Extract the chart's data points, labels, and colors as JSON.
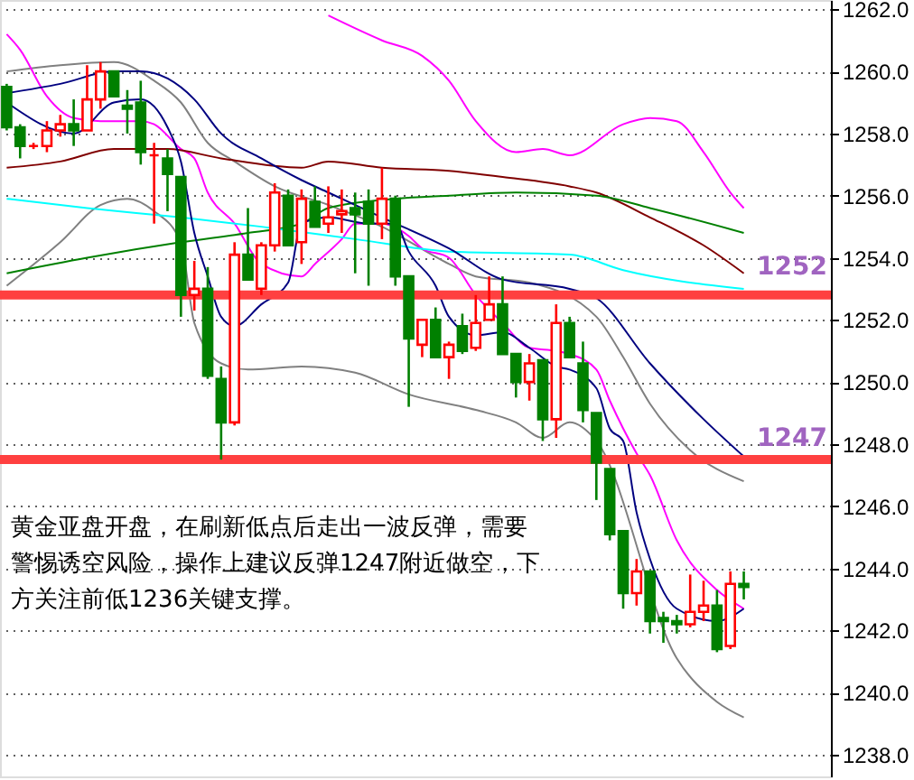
{
  "chart_data": {
    "type": "candlestick",
    "categories": [
      null,
      null,
      null,
      null,
      null,
      null,
      null,
      null,
      null,
      null,
      null,
      null,
      null,
      null,
      null,
      null,
      null,
      null,
      null,
      null,
      null,
      null,
      null,
      null,
      null,
      null,
      null,
      null,
      null,
      null,
      null,
      null,
      null,
      null,
      null,
      null,
      null,
      null,
      null,
      null,
      null,
      null,
      null,
      null,
      null,
      null,
      null,
      null,
      null,
      null,
      null,
      null,
      null,
      null,
      null,
      null,
      null,
      null,
      null,
      null,
      null,
      null
    ],
    "ohlc": [
      [
        1259.5,
        1259.6,
        1258.1,
        1258.2
      ],
      [
        1258.2,
        1258.3,
        1257.2,
        1257.6
      ],
      [
        1257.6,
        1257.7,
        1257.5,
        1257.6
      ],
      [
        1257.6,
        1258.4,
        1257.4,
        1258.1
      ],
      [
        1258.1,
        1258.6,
        1257.9,
        1258.3
      ],
      [
        1258.3,
        1259.1,
        1257.6,
        1258.1
      ],
      [
        1258.1,
        1260.2,
        1258.1,
        1259.1
      ],
      [
        1259.1,
        1260.3,
        1258.8,
        1260.0
      ],
      [
        1260.0,
        1260.0,
        1259.2,
        1259.2
      ],
      [
        1258.9,
        1259.4,
        1258.0,
        1258.8
      ],
      [
        1259.0,
        1259.7,
        1257.0,
        1257.4
      ],
      [
        1257.3,
        1257.7,
        1255.1,
        1257.3
      ],
      [
        1257.2,
        1257.5,
        1255.5,
        1256.7
      ],
      [
        1256.6,
        1256.6,
        1252.1,
        1252.8
      ],
      [
        1252.8,
        1253.9,
        1252.3,
        1253.0
      ],
      [
        1253.0,
        1253.7,
        1250.1,
        1250.2
      ],
      [
        1250.1,
        1250.5,
        1247.5,
        1248.7
      ],
      [
        1248.7,
        1254.5,
        1248.6,
        1254.1
      ],
      [
        1254.1,
        1255.6,
        1253.3,
        1253.3
      ],
      [
        1253.0,
        1254.5,
        1252.8,
        1254.4
      ],
      [
        1254.4,
        1256.4,
        1254.2,
        1256.1
      ],
      [
        1256.0,
        1256.2,
        1254.4,
        1254.4
      ],
      [
        1254.5,
        1256.2,
        1253.8,
        1255.9
      ],
      [
        1255.8,
        1256.3,
        1255.0,
        1255.0
      ],
      [
        1255.1,
        1256.3,
        1254.8,
        1255.3
      ],
      [
        1255.4,
        1256.2,
        1254.8,
        1255.5
      ],
      [
        1255.6,
        1256.1,
        1253.5,
        1255.4
      ],
      [
        1255.8,
        1256.2,
        1253.1,
        1255.1
      ],
      [
        1255.1,
        1256.9,
        1254.6,
        1255.9
      ],
      [
        1255.9,
        1256.0,
        1253.1,
        1253.4
      ],
      [
        1253.4,
        1253.4,
        1249.2,
        1251.4
      ],
      [
        1251.2,
        1252.0,
        1250.8,
        1252.0
      ],
      [
        1252.0,
        1252.4,
        1250.8,
        1250.8
      ],
      [
        1250.8,
        1251.3,
        1250.1,
        1251.2
      ],
      [
        1251.8,
        1252.2,
        1250.9,
        1251.0
      ],
      [
        1251.1,
        1252.8,
        1251.0,
        1251.9
      ],
      [
        1252.0,
        1253.4,
        1252.0,
        1252.5
      ],
      [
        1252.5,
        1253.4,
        1250.9,
        1250.9
      ],
      [
        1250.9,
        1250.9,
        1249.5,
        1250.0
      ],
      [
        1250.0,
        1250.9,
        1249.4,
        1250.6
      ],
      [
        1250.7,
        1250.7,
        1248.1,
        1248.8
      ],
      [
        1248.8,
        1252.5,
        1248.2,
        1251.9
      ],
      [
        1251.9,
        1252.1,
        1250.8,
        1250.8
      ],
      [
        1250.6,
        1251.3,
        1248.7,
        1249.1
      ],
      [
        1249.0,
        1249.0,
        1246.2,
        1247.4
      ],
      [
        1247.2,
        1247.2,
        1244.9,
        1245.1
      ],
      [
        1245.2,
        1245.2,
        1242.7,
        1243.2
      ],
      [
        1243.2,
        1244.3,
        1242.8,
        1243.9
      ],
      [
        1243.9,
        1243.9,
        1241.9,
        1242.3
      ],
      [
        1242.4,
        1242.6,
        1241.6,
        1242.3
      ],
      [
        1242.3,
        1242.5,
        1241.9,
        1242.2
      ],
      [
        1242.2,
        1243.8,
        1242.1,
        1242.6
      ],
      [
        1242.6,
        1243.6,
        1242.3,
        1242.8
      ],
      [
        1242.8,
        1243.3,
        1241.3,
        1241.4
      ],
      [
        1241.5,
        1243.9,
        1241.4,
        1243.5
      ],
      [
        1243.5,
        1243.9,
        1243.0,
        1243.4
      ],
      null,
      null,
      null,
      null,
      null,
      null
    ],
    "series": [
      {
        "type": "line",
        "color": "#808080",
        "values": [
          1260.0,
          null,
          null,
          null,
          1260.2,
          null,
          null,
          null,
          1260.3,
          null,
          null,
          1259.7,
          null,
          1259.0,
          null,
          1257.7,
          null,
          1257.1,
          null,
          null,
          1256.3,
          null,
          null,
          null,
          1255.7,
          null,
          null,
          null,
          1255.0,
          null,
          null,
          null,
          null,
          1253.8,
          null,
          1253.4,
          null,
          null,
          null,
          1253.2,
          null,
          null,
          null,
          null,
          1252.1,
          null,
          1250.8,
          null,
          1249.3,
          null,
          null,
          1247.8,
          null,
          null,
          null,
          1246.8,
          null,
          null,
          null,
          null,
          null,
          null
        ]
      },
      {
        "type": "line",
        "color": "#808080",
        "values": [
          1253.1,
          null,
          null,
          null,
          1254.5,
          null,
          null,
          1255.7,
          null,
          1255.9,
          null,
          1255.5,
          null,
          1254.5,
          1251.9,
          null,
          1250.6,
          null,
          1250.4,
          null,
          null,
          null,
          1250.5,
          null,
          null,
          null,
          1250.3,
          null,
          null,
          null,
          1249.6,
          null,
          null,
          null,
          null,
          1249.1,
          null,
          null,
          1248.7,
          null,
          1248.2,
          null,
          1248.7,
          null,
          1248.1,
          null,
          null,
          null,
          null,
          null,
          1241.1,
          null,
          null,
          1239.7,
          null,
          1239.2,
          null,
          null,
          null,
          null,
          null,
          null
        ]
      },
      {
        "type": "line",
        "color": "#ff00ff",
        "values": [
          1261.2,
          1260.7,
          null,
          1259.2,
          null,
          1258.5,
          null,
          1258.4,
          null,
          null,
          1258.4,
          1258.3,
          null,
          1257.5,
          1257.2,
          1256.1,
          null,
          1255.1,
          null,
          1253.8,
          null,
          null,
          1253.4,
          1253.8,
          null,
          1254.6,
          1255.1,
          null,
          1255.1,
          null,
          1254.7,
          1254.3,
          null,
          1254.0,
          null,
          1252.8,
          null,
          1251.9,
          null,
          1251.1,
          null,
          1251.0,
          1250.9,
          null,
          1250.4,
          1249.4,
          null,
          1247.7,
          1247.0,
          null,
          1244.9,
          null,
          null,
          1243.3,
          null,
          1242.7,
          null,
          null,
          null,
          null,
          null,
          null
        ]
      },
      {
        "type": "line",
        "color": "#ff00ff",
        "values": [
          null,
          null,
          null,
          null,
          null,
          null,
          null,
          null,
          null,
          null,
          null,
          null,
          null,
          null,
          null,
          null,
          null,
          null,
          null,
          null,
          null,
          null,
          null,
          null,
          1261.8,
          null,
          null,
          null,
          1261.0,
          null,
          null,
          1260.5,
          null,
          1259.7,
          null,
          1258.4,
          null,
          null,
          1257.4,
          null,
          1257.5,
          null,
          1257.3,
          null,
          null,
          null,
          1258.3,
          null,
          1258.5,
          null,
          1258.4,
          null,
          1257.4,
          null,
          1256.1,
          1255.6,
          null,
          null,
          null,
          null,
          null,
          null
        ]
      },
      {
        "type": "line",
        "color": "#800000",
        "values": [
          1256.9,
          null,
          null,
          null,
          1257.1,
          null,
          null,
          null,
          1257.5,
          null,
          null,
          null,
          1257.5,
          null,
          null,
          null,
          1257.2,
          null,
          null,
          null,
          null,
          null,
          1256.9,
          null,
          1257.1,
          null,
          null,
          null,
          1256.9,
          null,
          null,
          null,
          null,
          1256.8,
          null,
          null,
          null,
          1256.6,
          null,
          null,
          null,
          null,
          1256.3,
          null,
          1256.1,
          null,
          null,
          null,
          1255.3,
          null,
          null,
          null,
          1254.4,
          null,
          null,
          1253.5,
          null,
          null,
          null,
          null,
          null,
          null
        ]
      },
      {
        "type": "line",
        "color": "#008000",
        "values": [
          1253.5,
          null,
          null,
          null,
          null,
          null,
          1254.0,
          null,
          null,
          null,
          null,
          null,
          null,
          1254.5,
          null,
          null,
          null,
          null,
          1254.8,
          null,
          null,
          null,
          1255.1,
          null,
          1255.6,
          null,
          null,
          null,
          null,
          1255.9,
          null,
          null,
          null,
          1256.0,
          null,
          null,
          null,
          null,
          1256.1,
          null,
          null,
          null,
          null,
          null,
          1256.0,
          null,
          null,
          null,
          1255.6,
          null,
          null,
          null,
          null,
          null,
          null,
          1254.8,
          null,
          null,
          null,
          null,
          null,
          null
        ]
      },
      {
        "type": "line",
        "color": "#00ffff",
        "values": [
          1255.9,
          null,
          null,
          null,
          null,
          null,
          1255.6,
          null,
          null,
          null,
          null,
          null,
          null,
          1255.3,
          null,
          null,
          null,
          null,
          null,
          1255.0,
          null,
          null,
          null,
          null,
          null,
          null,
          1254.6,
          null,
          null,
          null,
          null,
          null,
          null,
          1254.2,
          null,
          null,
          null,
          null,
          null,
          null,
          null,
          null,
          1254.1,
          null,
          null,
          null,
          1253.6,
          null,
          null,
          null,
          null,
          null,
          null,
          null,
          null,
          1253.0,
          null,
          null,
          null,
          null,
          null,
          null
        ]
      },
      {
        "type": "line",
        "color": "#000080",
        "values": [
          1259.3,
          null,
          null,
          null,
          1259.6,
          null,
          null,
          null,
          1260.0,
          null,
          1260.0,
          null,
          null,
          null,
          1259.1,
          null,
          1258.0,
          null,
          null,
          1257.2,
          null,
          null,
          1256.5,
          null,
          1256.1,
          null,
          null,
          null,
          1255.3,
          null,
          null,
          null,
          null,
          1254.3,
          null,
          null,
          null,
          1253.3,
          null,
          null,
          null,
          null,
          1253.0,
          null,
          1252.7,
          null,
          null,
          null,
          1250.6,
          null,
          null,
          null,
          1248.8,
          null,
          null,
          1247.6,
          null,
          null,
          null,
          null,
          null,
          null
        ]
      },
      {
        "type": "line",
        "color": "#000080",
        "values": [
          1259.0,
          null,
          null,
          null,
          null,
          1258.0,
          null,
          null,
          1259.0,
          null,
          1259.1,
          null,
          1258.2,
          1257.1,
          1254.8,
          1253.4,
          1252.1,
          1251.8,
          null,
          1252.5,
          null,
          1253.2,
          1255.1,
          null,
          1255.3,
          null,
          null,
          1255.1,
          null,
          1255.1,
          1254.2,
          null,
          1253.1,
          1252.1,
          null,
          1251.5,
          null,
          1251.6,
          null,
          1251.1,
          null,
          1250.5,
          1250.4,
          null,
          1249.8,
          1248.5,
          1248.1,
          1245.8,
          1244.3,
          null,
          1242.7,
          null,
          null,
          1242.3,
          null,
          1242.7,
          null,
          null,
          null,
          null,
          null,
          null
        ]
      }
    ],
    "ylim": [
      1237.3,
      1262.3
    ],
    "yticks": [
      {
        "value": 1238,
        "label": "1238.0"
      },
      {
        "value": 1240,
        "label": "1240.0"
      },
      {
        "value": 1242,
        "label": "1242.0"
      },
      {
        "value": 1244,
        "label": "1244.0"
      },
      {
        "value": 1246,
        "label": "1246.0"
      },
      {
        "value": 1248,
        "label": "1248.0"
      },
      {
        "value": 1250,
        "label": "1250.0"
      },
      {
        "value": 1252,
        "label": "1252.0"
      },
      {
        "value": 1254,
        "label": "1254.0"
      },
      {
        "value": 1256,
        "label": "1256.0"
      },
      {
        "value": 1258,
        "label": "1258.0"
      },
      {
        "value": 1260,
        "label": "1260.0"
      },
      {
        "value": 1262,
        "label": "1262.0"
      }
    ],
    "tick_labels": "y",
    "grid": "y",
    "line_style": "solid",
    "ref_lines": [
      {
        "axis": "y",
        "value": 1252.8,
        "color": "#ff4040"
      },
      {
        "axis": "y",
        "value": 1247.5,
        "color": "#ff4040"
      }
    ],
    "annotations": [
      "1252",
      "1247",
      "黄金亚盘开盘，在刷新低点后走出一波反弹，需要警惕诱空风险，操作上建议反弹1247附近做空，下方关注前低1236关键支撑。"
    ]
  }
}
